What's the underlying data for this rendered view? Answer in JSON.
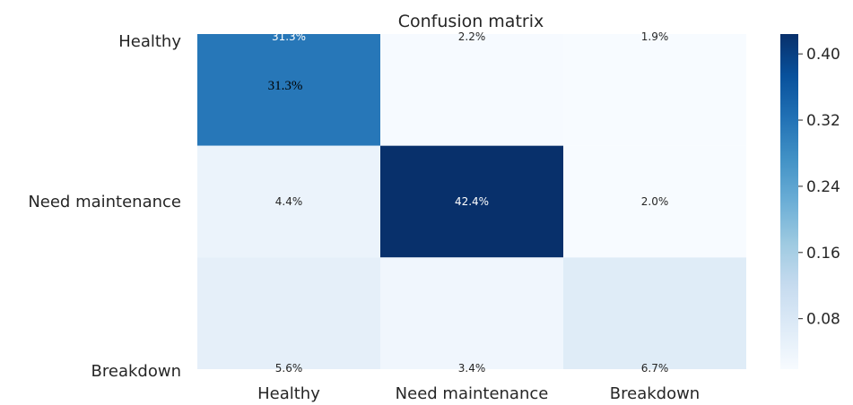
{
  "chart_data": {
    "type": "heatmap",
    "title": "Confusion matrix",
    "row_labels": [
      "Healthy",
      "Need maintenance",
      "Breakdown"
    ],
    "col_labels": [
      "Healthy",
      "Need maintenance",
      "Breakdown"
    ],
    "values": [
      [
        0.313,
        0.022,
        0.019
      ],
      [
        0.044,
        0.424,
        0.02
      ],
      [
        0.056,
        0.034,
        0.067
      ]
    ],
    "cell_labels": [
      [
        "31.3%",
        "2.2%",
        "1.9%"
      ],
      [
        "4.4%",
        "42.4%",
        "2.0%"
      ],
      [
        "5.6%",
        "3.4%",
        "6.7%"
      ]
    ],
    "overlay_label": "31.3%",
    "colorbar": {
      "ticks": [
        0.08,
        0.16,
        0.24,
        0.32,
        0.4
      ],
      "tick_labels": [
        "0.08",
        "0.16",
        "0.24",
        "0.32",
        "0.40"
      ],
      "range": [
        0.019,
        0.424
      ],
      "colormap": "Blues"
    }
  }
}
